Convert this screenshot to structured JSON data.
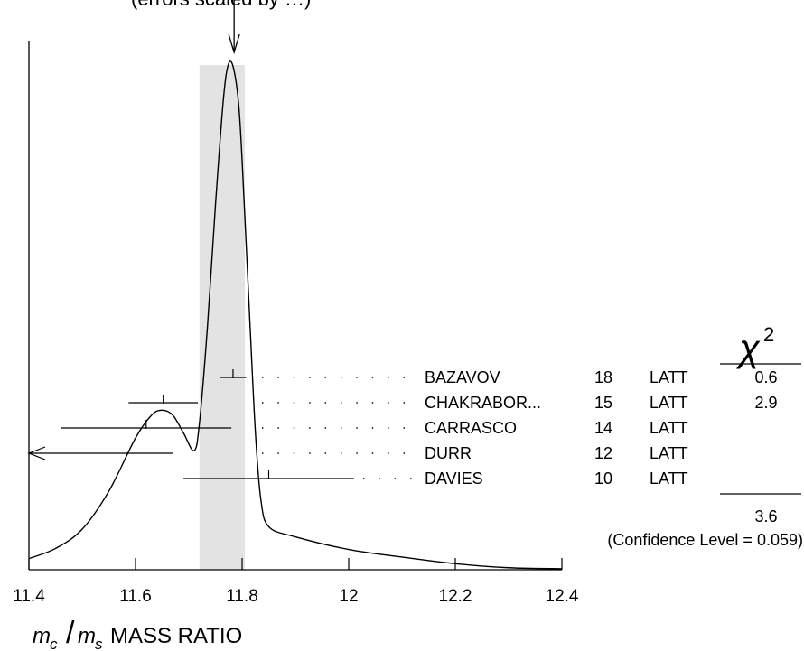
{
  "chart_data": {
    "type": "ideogram",
    "top_caption": "(errors scaled by …)",
    "xlabel_m_c": "m",
    "xlabel_c_sub": "c",
    "xlabel_slash": "/",
    "xlabel_m_s": "m",
    "xlabel_s_sub": "s",
    "xlabel_text": "MASS RATIO",
    "xlim": [
      11.4,
      12.4
    ],
    "x_ticks": [
      11.4,
      11.6,
      11.8,
      12.0,
      12.2,
      12.4
    ],
    "x_tick_labels": [
      "11.4",
      "11.6",
      "11.8",
      "12",
      "12.2",
      "12.4"
    ],
    "average": 11.785,
    "average_band": [
      11.72,
      11.805
    ],
    "chi2_symbol": "χ",
    "chi2_exponent": "2",
    "chi2_total": "3.6",
    "confidence_level_text": "(Confidence Level = 0.059)",
    "measurements": [
      {
        "author": "BAZAVOV",
        "ref": "18",
        "tech": "LATT",
        "chi2": "0.6",
        "value": 11.783,
        "err_minus": 0.025,
        "err_plus": 0.025,
        "arrow_left": false
      },
      {
        "author": "CHAKRABOR...",
        "ref": "15",
        "tech": "LATT",
        "chi2": "2.9",
        "value": 11.652,
        "err_minus": 0.065,
        "err_plus": 0.065,
        "arrow_left": false
      },
      {
        "author": "CARRASCO",
        "ref": "14",
        "tech": "LATT",
        "chi2": "",
        "value": 11.62,
        "err_minus": 0.16,
        "err_plus": 0.16,
        "arrow_left": false
      },
      {
        "author": "DURR",
        "ref": "12",
        "tech": "LATT",
        "chi2": "",
        "value": 11.27,
        "err_minus": 0.4,
        "err_plus": 0.4,
        "arrow_left": true
      },
      {
        "author": "DAVIES",
        "ref": "10",
        "tech": "LATT",
        "chi2": "",
        "value": 11.85,
        "err_minus": 0.16,
        "err_plus": 0.16,
        "arrow_left": false
      }
    ],
    "ideogram_curve": [
      [
        11.4,
        0.022
      ],
      [
        11.45,
        0.042
      ],
      [
        11.5,
        0.08
      ],
      [
        11.55,
        0.155
      ],
      [
        11.6,
        0.26
      ],
      [
        11.63,
        0.305
      ],
      [
        11.65,
        0.315
      ],
      [
        11.67,
        0.305
      ],
      [
        11.69,
        0.27
      ],
      [
        11.71,
        0.235
      ],
      [
        11.72,
        0.29
      ],
      [
        11.735,
        0.48
      ],
      [
        11.75,
        0.72
      ],
      [
        11.765,
        0.93
      ],
      [
        11.775,
        1.0
      ],
      [
        11.785,
        0.985
      ],
      [
        11.795,
        0.9
      ],
      [
        11.805,
        0.7
      ],
      [
        11.815,
        0.48
      ],
      [
        11.825,
        0.27
      ],
      [
        11.835,
        0.14
      ],
      [
        11.85,
        0.085
      ],
      [
        11.9,
        0.065
      ],
      [
        12.0,
        0.04
      ],
      [
        12.1,
        0.025
      ],
      [
        12.2,
        0.012
      ],
      [
        12.3,
        0.004
      ],
      [
        12.4,
        0.002
      ]
    ]
  }
}
